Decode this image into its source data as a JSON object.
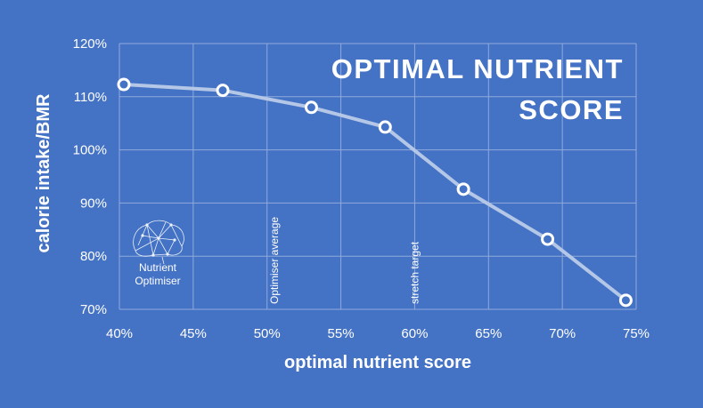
{
  "chart_data": {
    "type": "line",
    "title_lines": [
      "OPTIMAL NUTRIENT",
      "SCORE"
    ],
    "xlabel": "optimal nutrient score",
    "ylabel": "calorie intake/BMR",
    "xlim": [
      0.4,
      0.75
    ],
    "ylim": [
      0.7,
      1.2
    ],
    "x_ticks": [
      0.4,
      0.45,
      0.5,
      0.55,
      0.6,
      0.65,
      0.7,
      0.75
    ],
    "y_ticks": [
      0.7,
      0.8,
      0.9,
      1.0,
      1.1,
      1.2
    ],
    "x_tick_labels": [
      "40%",
      "45%",
      "50%",
      "55%",
      "60%",
      "65%",
      "70%",
      "75%"
    ],
    "y_tick_labels": [
      "70%",
      "80%",
      "90%",
      "100%",
      "110%",
      "120%"
    ],
    "grid": true,
    "series": [
      {
        "x": [
          0.403,
          0.47,
          0.53,
          0.58,
          0.633,
          0.69,
          0.743
        ],
        "y": [
          1.123,
          1.112,
          1.08,
          1.043,
          0.926,
          0.832,
          0.717
        ]
      }
    ],
    "annotations": [
      {
        "text": "Optimiser average",
        "x": 0.505
      },
      {
        "text": "stretch target",
        "x": 0.6
      }
    ],
    "colors": {
      "background": "#4472c4",
      "line": "#b4c7e7",
      "marker_fill": "#4472c4",
      "marker_stroke": "#ffffff",
      "grid": "#8faadc",
      "text": "#ffffff"
    }
  },
  "logo": {
    "line1": "Nutrient",
    "line2": "Optimiser",
    "icon": "brain-network-icon"
  }
}
